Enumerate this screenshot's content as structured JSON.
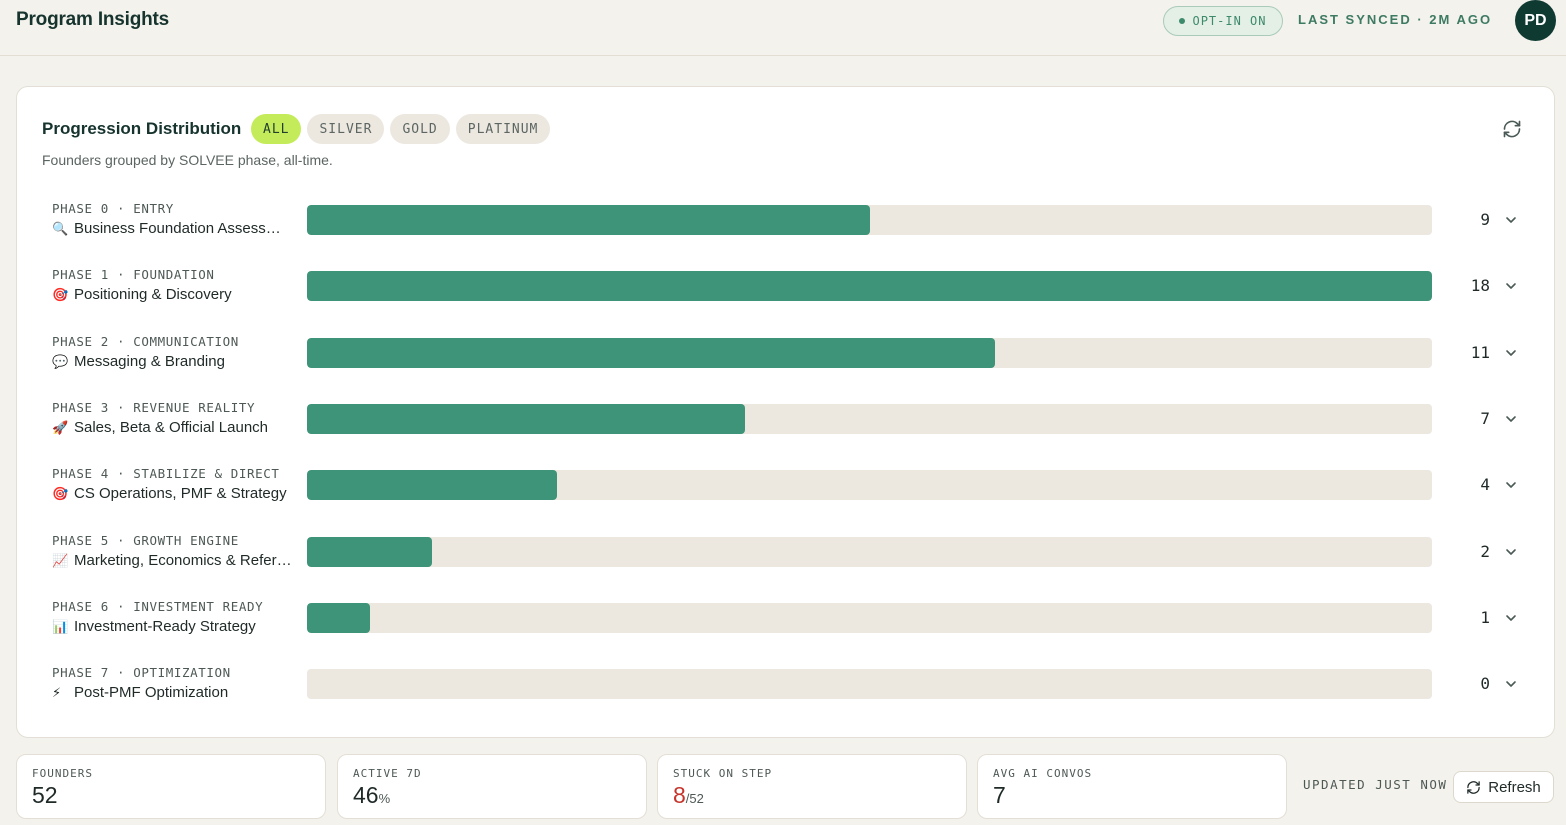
{
  "header": {
    "title": "Program Insights",
    "optin_label": "OPT-IN ON",
    "synced_label": "LAST SYNCED · 2M AGO",
    "avatar_initials": "PD"
  },
  "card": {
    "title": "Progression Distribution",
    "subtitle": "Founders grouped by SOLVEE phase, all-time.",
    "filters": [
      {
        "label": "ALL",
        "active": true
      },
      {
        "label": "SILVER",
        "active": false
      },
      {
        "label": "GOLD",
        "active": false
      },
      {
        "label": "PLATINUM",
        "active": false
      }
    ],
    "max_count": 18,
    "phases": [
      {
        "label": "PHASE 0 · ENTRY",
        "emoji": "🔍",
        "name": "Business Foundation Assessment",
        "count": 9
      },
      {
        "label": "PHASE 1 · FOUNDATION",
        "emoji": "🎯",
        "name": "Positioning & Discovery",
        "count": 18
      },
      {
        "label": "PHASE 2 · COMMUNICATION",
        "emoji": "💬",
        "name": "Messaging & Branding",
        "count": 11
      },
      {
        "label": "PHASE 3 · REVENUE REALITY",
        "emoji": "🚀",
        "name": "Sales, Beta & Official Launch",
        "count": 7
      },
      {
        "label": "PHASE 4 · STABILIZE & DIRECT",
        "emoji": "🎯",
        "name": "CS Operations, PMF & Strategy",
        "count": 4
      },
      {
        "label": "PHASE 5 · GROWTH ENGINE",
        "emoji": "📈",
        "name": "Marketing, Economics & Referrals",
        "count": 2
      },
      {
        "label": "PHASE 6 · INVESTMENT READY",
        "emoji": "📊",
        "name": "Investment-Ready Strategy",
        "count": 1
      },
      {
        "label": "PHASE 7 · OPTIMIZATION",
        "emoji": "⚡",
        "name": "Post-PMF Optimization",
        "count": 0
      }
    ]
  },
  "stats": {
    "founders": {
      "label": "FOUNDERS",
      "value": "52"
    },
    "active": {
      "label": "ACTIVE 7D",
      "value": "46",
      "unit": "%"
    },
    "stuck": {
      "label": "STUCK ON STEP",
      "value": "8",
      "unit": "/52"
    },
    "convos": {
      "label": "AVG AI CONVOS",
      "value": "7"
    }
  },
  "footer": {
    "updated_label": "UPDATED JUST NOW",
    "refresh_label": "Refresh"
  },
  "colors": {
    "bar_fill": "#3e9478",
    "bar_track": "#ece7df",
    "accent_chip": "#c4ec5a",
    "stuck_red": "#c6342b",
    "avatar_bg": "#0f3a32"
  },
  "icons": [
    "refresh-icon",
    "chevron-down-icon",
    "status-dot-icon"
  ]
}
